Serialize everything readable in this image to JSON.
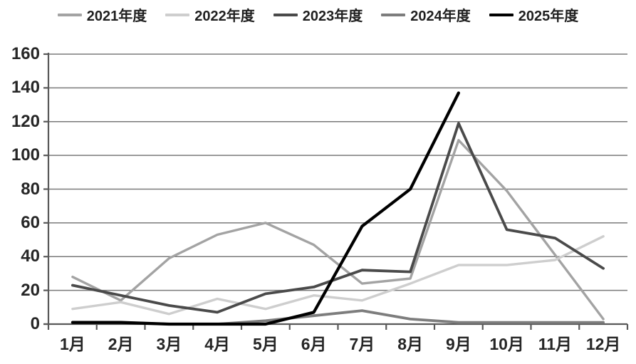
{
  "chart_data": {
    "type": "line",
    "title": "",
    "xlabel": "",
    "ylabel": "",
    "categories": [
      "1月",
      "2月",
      "3月",
      "4月",
      "5月",
      "6月",
      "7月",
      "8月",
      "9月",
      "10月",
      "11月",
      "12月"
    ],
    "series": [
      {
        "name": "2021年度",
        "color": "#a3a3a3",
        "stroke_width": 3.4,
        "values": [
          28,
          14,
          39,
          53,
          60,
          47,
          24,
          27,
          109,
          79,
          41,
          3
        ]
      },
      {
        "name": "2022年度",
        "color": "#cecece",
        "stroke_width": 3.4,
        "values": [
          9,
          13,
          6,
          15,
          9,
          17,
          14,
          24,
          35,
          35,
          38,
          52
        ]
      },
      {
        "name": "2023年度",
        "color": "#4a4a4a",
        "stroke_width": 3.8,
        "values": [
          23,
          17,
          11,
          7,
          18,
          22,
          32,
          31,
          119,
          56,
          51,
          33
        ]
      },
      {
        "name": "2024年度",
        "color": "#7d7d7d",
        "stroke_width": 3.8,
        "values": [
          1,
          1,
          0,
          0,
          2,
          5,
          8,
          3,
          1,
          1,
          1,
          1
        ]
      },
      {
        "name": "2025年度",
        "color": "#000000",
        "stroke_width": 4.2,
        "values": [
          1,
          1,
          0,
          0,
          0,
          7,
          58,
          80,
          137,
          null,
          null,
          null
        ]
      }
    ],
    "ylim": [
      0,
      160
    ],
    "yticks": [
      0,
      20,
      40,
      60,
      80,
      100,
      120,
      140,
      160
    ],
    "grid": true,
    "legend_position": "top"
  },
  "style": {
    "grid_color": "#7a7a7a",
    "axis_color": "#595959",
    "text_color": "#262626",
    "background": "#ffffff"
  }
}
